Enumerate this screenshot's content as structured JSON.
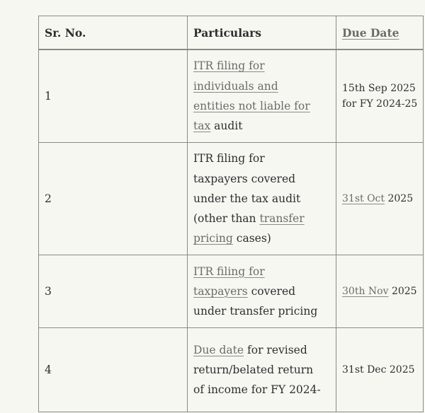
{
  "header": {
    "sr_no": "Sr. No.",
    "particulars": "Particulars",
    "due_date": "Due Date"
  },
  "rows": [
    {
      "sr": "1",
      "particulars": [
        [
          {
            "t": "ITR filing for",
            "link": true
          }
        ],
        [
          {
            "t": "individuals and",
            "link": true
          }
        ],
        [
          {
            "t": "entities not liable for",
            "link": true
          }
        ],
        [
          {
            "t": "tax",
            "link": true
          },
          {
            "t": " audit",
            "link": false
          }
        ]
      ],
      "due": [
        [
          {
            "t": "15th Sep 2025",
            "link": false
          }
        ],
        [
          {
            "t": "for FY 2024-25",
            "link": false
          }
        ]
      ]
    },
    {
      "sr": "2",
      "particulars": [
        [
          {
            "t": "ITR filing for",
            "link": false
          }
        ],
        [
          {
            "t": "taxpayers covered",
            "link": false
          }
        ],
        [
          {
            "t": "under the tax audit",
            "link": false
          }
        ],
        [
          {
            "t": "(other than ",
            "link": false
          },
          {
            "t": "transfer",
            "link": true
          }
        ],
        [
          {
            "t": "pricing",
            "link": true
          },
          {
            "t": " cases)",
            "link": false
          }
        ]
      ],
      "due": [
        [
          {
            "t": "31st Oct",
            "link": true
          },
          {
            "t": " 2025",
            "link": false
          }
        ]
      ]
    },
    {
      "sr": "3",
      "particulars": [
        [
          {
            "t": "ITR filing for",
            "link": true
          }
        ],
        [
          {
            "t": "taxpayers",
            "link": true
          },
          {
            "t": " covered",
            "link": false
          }
        ],
        [
          {
            "t": "under transfer pricing",
            "link": false
          }
        ]
      ],
      "due": [
        [
          {
            "t": "30th Nov",
            "link": true
          },
          {
            "t": " 2025",
            "link": false
          }
        ]
      ]
    },
    {
      "sr": "4",
      "particulars": [
        [
          {
            "t": "Due date",
            "link": true
          },
          {
            "t": " for revised",
            "link": false
          }
        ],
        [
          {
            "t": "return/belated return",
            "link": false
          }
        ],
        [
          {
            "t": "of income for FY 2024-",
            "link": false
          }
        ]
      ],
      "due": [
        [
          {
            "t": "31st Dec 2025",
            "link": false
          }
        ]
      ]
    }
  ]
}
